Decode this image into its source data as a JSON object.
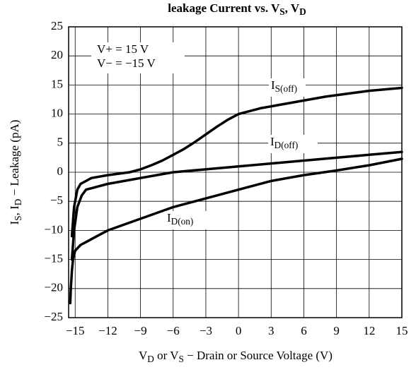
{
  "chart_data": {
    "type": "line",
    "title": [
      "leakage Current vs. V",
      "S",
      ", V",
      "D"
    ],
    "xlabel": [
      "V",
      "D",
      " or V",
      "S",
      " − Drain or Source Voltage (V)"
    ],
    "ylabel": [
      "I",
      "S",
      ", I",
      "D",
      " − Leakage (pA)"
    ],
    "annotations": [
      "V+ = 15 V",
      "V− = −15 V"
    ],
    "xlim": [
      -15.6,
      15
    ],
    "ylim": [
      -25,
      25
    ],
    "xticks": [
      {
        "value": -15,
        "label": "−15"
      },
      {
        "value": -12,
        "label": "−12"
      },
      {
        "value": -9,
        "label": "−9"
      },
      {
        "value": -6,
        "label": "−6"
      },
      {
        "value": -3,
        "label": "−3"
      },
      0,
      3,
      6,
      9,
      12,
      15
    ],
    "yticks": [
      {
        "value": -25,
        "label": "−25"
      },
      {
        "value": -20,
        "label": "−20"
      },
      {
        "value": -15,
        "label": "−15"
      },
      {
        "value": -10,
        "label": "−10"
      },
      {
        "value": -5,
        "label": "−5"
      },
      0,
      5,
      10,
      15,
      20,
      25
    ],
    "grid": true,
    "series": [
      {
        "name": [
          "I",
          "S(off)"
        ],
        "color": "#000000",
        "x": [
          -15.3,
          -15.1,
          -14.8,
          -14.5,
          -13.5,
          -12,
          -10,
          -9,
          -8,
          -7,
          -6,
          -5,
          -4,
          -3,
          -2,
          -1,
          0,
          2,
          5,
          8,
          12,
          15
        ],
        "values": [
          -11,
          -6,
          -3,
          -2,
          -1,
          -0.5,
          0,
          0.5,
          1.2,
          2,
          3,
          4,
          5.2,
          6.5,
          7.8,
          9,
          10,
          11,
          12,
          13,
          14,
          14.5
        ]
      },
      {
        "name": [
          "I",
          "D(off)"
        ],
        "color": "#000000",
        "x": [
          -15.3,
          -15.1,
          -14.8,
          -14.4,
          -14,
          -13,
          -12,
          -9,
          -6,
          -3,
          0,
          3,
          6,
          9,
          12,
          15
        ],
        "values": [
          -15,
          -10,
          -6,
          -4,
          -3,
          -2.5,
          -2,
          -1,
          0,
          0.5,
          1,
          1.5,
          2,
          2.5,
          3,
          3.5
        ]
      },
      {
        "name": [
          "I",
          "D(on)"
        ],
        "color": "#000000",
        "x": [
          -15.45,
          -15.4,
          -15.3,
          -15.2,
          -15,
          -14.5,
          -14,
          -13,
          -12,
          -9,
          -6,
          -3,
          0,
          3,
          6,
          9,
          12,
          15
        ],
        "values": [
          -22.5,
          -20,
          -17,
          -15,
          -13.5,
          -12.5,
          -12,
          -11,
          -10,
          -8,
          -6,
          -4.5,
          -3,
          -1.5,
          -0.5,
          0.3,
          1.2,
          2.3
        ]
      }
    ]
  }
}
